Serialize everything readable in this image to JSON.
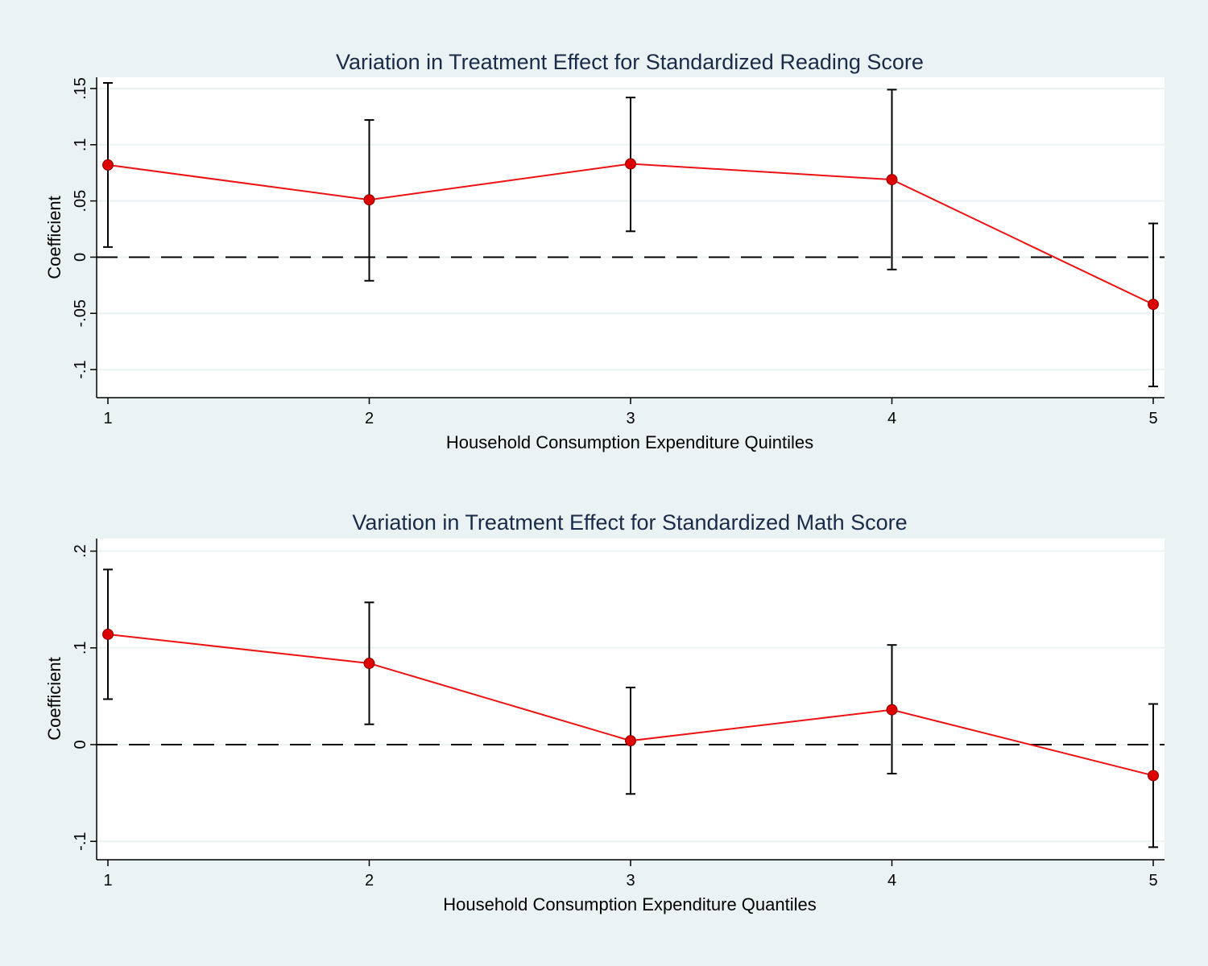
{
  "colors": {
    "background": "#eaf2f3",
    "plot_area": "#ffffff",
    "gridline": "#eaf2f3",
    "series_line": "#ee1111",
    "marker_fill": "#dd0000",
    "error_bar": "#000000",
    "title_text": "#1a2b4a"
  },
  "chart_data": [
    {
      "type": "line",
      "title": "Variation in Treatment Effect for Standardized Reading Score",
      "xlabel": "Household Consumption Expenditure Quintiles",
      "ylabel": "Coefficient",
      "x": [
        1,
        2,
        3,
        4,
        5
      ],
      "xticks": [
        "1",
        "2",
        "3",
        "4",
        "5"
      ],
      "yticks": [
        -0.1,
        -0.05,
        0,
        0.05,
        0.1,
        0.15
      ],
      "ytick_labels": [
        "-.1",
        "-.05",
        "0",
        ".05",
        ".1",
        ".15"
      ],
      "ylim": [
        -0.125,
        0.16
      ],
      "grid": true,
      "reference_line": 0,
      "series": [
        {
          "values": [
            0.082,
            0.051,
            0.083,
            0.069,
            -0.042
          ],
          "ci_lower": [
            0.009,
            -0.021,
            0.023,
            -0.011,
            -0.115
          ],
          "ci_upper": [
            0.155,
            0.122,
            0.142,
            0.149,
            0.03
          ]
        }
      ]
    },
    {
      "type": "line",
      "title": "Variation in Treatment Effect for Standardized Math Score",
      "xlabel": "Household Consumption Expenditure Quantiles",
      "ylabel": "Coefficient",
      "x": [
        1,
        2,
        3,
        4,
        5
      ],
      "xticks": [
        "1",
        "2",
        "3",
        "4",
        "5"
      ],
      "yticks": [
        -0.1,
        0,
        0.1,
        0.2
      ],
      "ytick_labels": [
        "-.1",
        "0",
        ".1",
        ".2"
      ],
      "ylim": [
        -0.119,
        0.213
      ],
      "grid": true,
      "reference_line": 0,
      "series": [
        {
          "values": [
            0.114,
            0.084,
            0.004,
            0.036,
            -0.032
          ],
          "ci_lower": [
            0.047,
            0.021,
            -0.051,
            -0.03,
            -0.106
          ],
          "ci_upper": [
            0.181,
            0.147,
            0.059,
            0.103,
            0.042
          ]
        }
      ]
    }
  ]
}
